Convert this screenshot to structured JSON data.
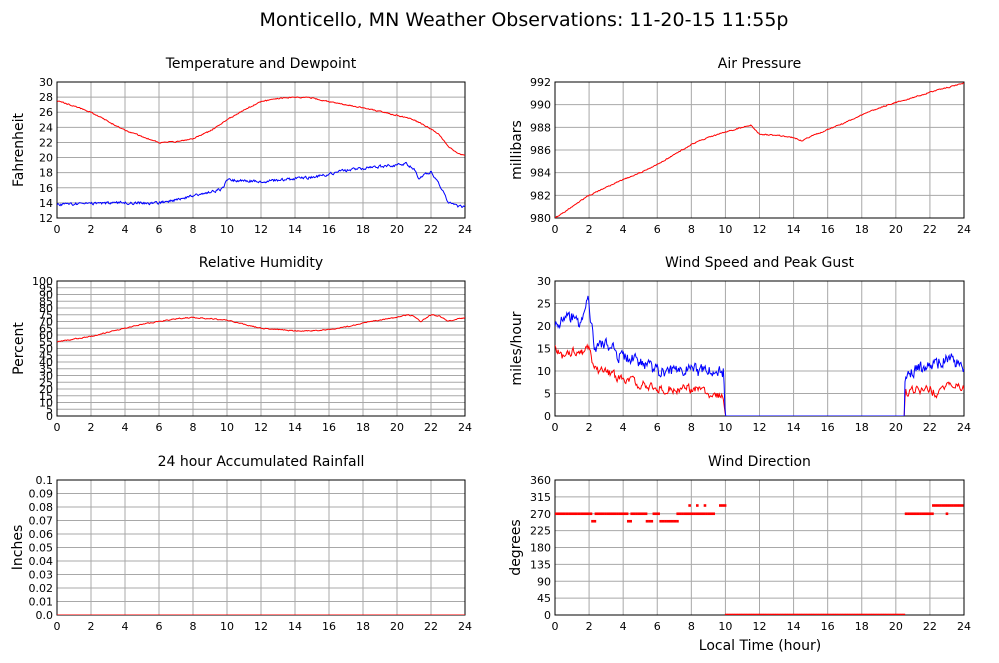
{
  "page": {
    "title": "Monticello, MN Weather Observations: 11-20-15 11:55p",
    "xlabel": "Local Time (hour)"
  },
  "colors": {
    "red": "#ff0000",
    "blue": "#0000ff",
    "grid": "#a8a8a8",
    "axis": "#000000"
  },
  "chart_data": [
    {
      "id": "temperature",
      "type": "line",
      "title": "Temperature and Dewpoint",
      "xlabel": "",
      "ylabel": "Fahrenheit",
      "xlim": [
        0,
        24
      ],
      "ylim": [
        12,
        30
      ],
      "xticks": [
        0,
        2,
        4,
        6,
        8,
        10,
        12,
        14,
        16,
        18,
        20,
        22,
        24
      ],
      "yticks": [
        12,
        14,
        16,
        18,
        20,
        22,
        24,
        26,
        28,
        30
      ],
      "grid": true,
      "series": [
        {
          "color": "#ff0000",
          "noise": 0.12,
          "x": [
            0,
            1,
            2,
            3,
            4,
            5,
            6,
            7,
            8,
            9,
            10,
            11,
            12,
            13,
            14,
            15,
            16,
            17,
            18,
            19,
            20,
            21,
            22,
            22.5,
            23,
            23.5,
            24
          ],
          "y": [
            27.5,
            26.8,
            26,
            24.8,
            23.6,
            22.8,
            22,
            22.1,
            22.5,
            23.5,
            25,
            26.3,
            27.4,
            27.8,
            28,
            27.9,
            27.4,
            27,
            26.6,
            26.1,
            25.6,
            25,
            23.8,
            23,
            21.5,
            20.7,
            20.2
          ]
        },
        {
          "color": "#0000ff",
          "noise": 0.3,
          "x": [
            0,
            2,
            4,
            6,
            7,
            8,
            9,
            9.7,
            10,
            11,
            12,
            13,
            14,
            15,
            16,
            17,
            18,
            19,
            20,
            20.5,
            21,
            21.3,
            22,
            22.5,
            23,
            23.5,
            24
          ],
          "y": [
            13.8,
            13.9,
            14,
            14,
            14.4,
            15,
            15.4,
            15.8,
            17,
            17,
            16.8,
            17,
            17.2,
            17.4,
            17.8,
            18.3,
            18.6,
            18.8,
            19,
            19.2,
            18.5,
            17.2,
            18.2,
            16.5,
            14.2,
            13.6,
            13.5
          ]
        }
      ]
    },
    {
      "id": "pressure",
      "type": "line",
      "title": "Air Pressure",
      "xlabel": "",
      "ylabel": "millibars",
      "xlim": [
        0,
        24
      ],
      "ylim": [
        980,
        992
      ],
      "xticks": [
        0,
        2,
        4,
        6,
        8,
        10,
        12,
        14,
        16,
        18,
        20,
        22,
        24
      ],
      "yticks": [
        980,
        982,
        984,
        986,
        988,
        990,
        992
      ],
      "grid": true,
      "series": [
        {
          "color": "#ff0000",
          "noise": 0.08,
          "x": [
            0,
            1,
            2,
            3,
            4,
            5,
            6,
            7,
            8,
            9,
            10,
            11,
            11.5,
            12,
            13,
            14,
            14.5,
            15,
            16,
            17,
            18,
            19,
            20,
            21,
            22,
            23,
            24
          ],
          "y": [
            980,
            981,
            982,
            982.7,
            983.4,
            984,
            984.7,
            985.6,
            986.5,
            987.1,
            987.6,
            988,
            988.2,
            987.4,
            987.3,
            987.1,
            986.8,
            987.2,
            987.8,
            988.4,
            989.1,
            989.7,
            990.2,
            990.6,
            991.1,
            991.5,
            991.9
          ]
        }
      ]
    },
    {
      "id": "humidity",
      "type": "line",
      "title": "Relative Humidity",
      "xlabel": "",
      "ylabel": "Percent",
      "xlim": [
        0,
        24
      ],
      "ylim": [
        0,
        100
      ],
      "xticks": [
        0,
        2,
        4,
        6,
        8,
        10,
        12,
        14,
        16,
        18,
        20,
        22,
        24
      ],
      "yticks": [
        0,
        5,
        10,
        15,
        20,
        25,
        30,
        35,
        40,
        45,
        50,
        55,
        60,
        65,
        70,
        75,
        80,
        85,
        90,
        95,
        100
      ],
      "grid": true,
      "series": [
        {
          "color": "#ff0000",
          "noise": 0.6,
          "x": [
            0,
            1,
            2,
            3,
            4,
            5,
            6,
            7,
            8,
            9,
            10,
            11,
            12,
            13,
            14,
            15,
            16,
            17,
            18,
            19,
            20,
            20.6,
            21,
            21.4,
            22,
            22.5,
            23,
            23.5,
            24
          ],
          "y": [
            55,
            57,
            59,
            62,
            65,
            68,
            70,
            72,
            73,
            72,
            71,
            68,
            65,
            64,
            63,
            63,
            64,
            66,
            69,
            71,
            73,
            75,
            74,
            70,
            75,
            74,
            70,
            72,
            73
          ]
        }
      ]
    },
    {
      "id": "wind",
      "type": "line",
      "title": "Wind Speed and Peak Gust",
      "xlabel": "",
      "ylabel": "miles/hour",
      "xlim": [
        0,
        24
      ],
      "ylim": [
        0,
        30
      ],
      "xticks": [
        0,
        2,
        4,
        6,
        8,
        10,
        12,
        14,
        16,
        18,
        20,
        22,
        24
      ],
      "yticks": [
        0,
        5,
        10,
        15,
        20,
        25,
        30
      ],
      "grid": true,
      "series": [
        {
          "color": "#ff0000",
          "noise": 1.6,
          "x": [
            0,
            0.5,
            1,
            1.5,
            2,
            2.3,
            3,
            4,
            5,
            6,
            7,
            8,
            9,
            9.9,
            10,
            10.05,
            20.5,
            20.55,
            21,
            22,
            22.5,
            23,
            24
          ],
          "y": [
            15,
            13,
            14,
            14,
            15,
            10,
            10,
            8,
            7,
            6,
            6,
            6,
            5,
            4,
            0,
            0,
            0,
            5,
            6,
            6,
            5,
            7,
            6
          ]
        },
        {
          "color": "#0000ff",
          "noise": 2.4,
          "x": [
            0,
            0.5,
            1,
            1.5,
            1.9,
            2.3,
            3,
            4,
            5,
            6,
            7,
            8,
            9,
            9.9,
            10,
            10.05,
            20.5,
            20.55,
            21,
            22,
            22.5,
            23,
            24
          ],
          "y": [
            20,
            21,
            22,
            20,
            27,
            16,
            16,
            13,
            12,
            10,
            10,
            10,
            10,
            10,
            0,
            0,
            0,
            9,
            10,
            11,
            12,
            13,
            11
          ]
        }
      ]
    },
    {
      "id": "rain",
      "type": "line",
      "title": "24 hour Accumulated Rainfall",
      "xlabel": "",
      "ylabel": "Inches",
      "xlim": [
        0,
        24
      ],
      "ylim": [
        0,
        0.1
      ],
      "xticks": [
        0,
        2,
        4,
        6,
        8,
        10,
        12,
        14,
        16,
        18,
        20,
        22,
        24
      ],
      "yticks": [
        0,
        0.01,
        0.02,
        0.03,
        0.04,
        0.05,
        0.06,
        0.07,
        0.08,
        0.09,
        0.1
      ],
      "ytick_labels": [
        "0.0",
        "0.01",
        "0.02",
        "0.03",
        "0.04",
        "0.05",
        "0.06",
        "0.07",
        "0.08",
        "0.09",
        "0.1"
      ],
      "grid": true,
      "series": [
        {
          "color": "#ff0000",
          "noise": 0,
          "x": [
            0,
            24
          ],
          "y": [
            0,
            0
          ]
        }
      ]
    },
    {
      "id": "direction",
      "type": "scatter",
      "title": "Wind Direction",
      "xlabel": "",
      "ylabel": "degrees",
      "xlim": [
        0,
        24
      ],
      "ylim": [
        0,
        360
      ],
      "xticks": [
        0,
        2,
        4,
        6,
        8,
        10,
        12,
        14,
        16,
        18,
        20,
        22,
        24
      ],
      "yticks": [
        0,
        45,
        90,
        135,
        180,
        225,
        270,
        315,
        360
      ],
      "grid": true,
      "point_color": "#ff0000",
      "segments": [
        {
          "x0": 0,
          "x1": 2.2,
          "y": 270
        },
        {
          "x0": 2.2,
          "x1": 2.4,
          "y": 250
        },
        {
          "x0": 2.4,
          "x1": 4.3,
          "y": 270
        },
        {
          "x0": 4.3,
          "x1": 4.5,
          "y": 250
        },
        {
          "x0": 4.5,
          "x1": 5.4,
          "y": 270
        },
        {
          "x0": 5.4,
          "x1": 5.8,
          "y": 250
        },
        {
          "x0": 5.8,
          "x1": 6.2,
          "y": 270
        },
        {
          "x0": 6.2,
          "x1": 7.2,
          "y": 250
        },
        {
          "x0": 7.2,
          "x1": 9.4,
          "y": 270
        },
        {
          "x0": 9.7,
          "x1": 10.0,
          "y": 292
        },
        {
          "x0": 10.05,
          "x1": 20.5,
          "y": 0
        },
        {
          "x0": 20.6,
          "x1": 22.2,
          "y": 270
        },
        {
          "x0": 22.2,
          "x1": 24,
          "y": 292
        }
      ],
      "points": [
        {
          "x": 7.9,
          "y": 292
        },
        {
          "x": 8.35,
          "y": 292
        },
        {
          "x": 8.8,
          "y": 292
        },
        {
          "x": 23.0,
          "y": 270
        }
      ]
    }
  ]
}
